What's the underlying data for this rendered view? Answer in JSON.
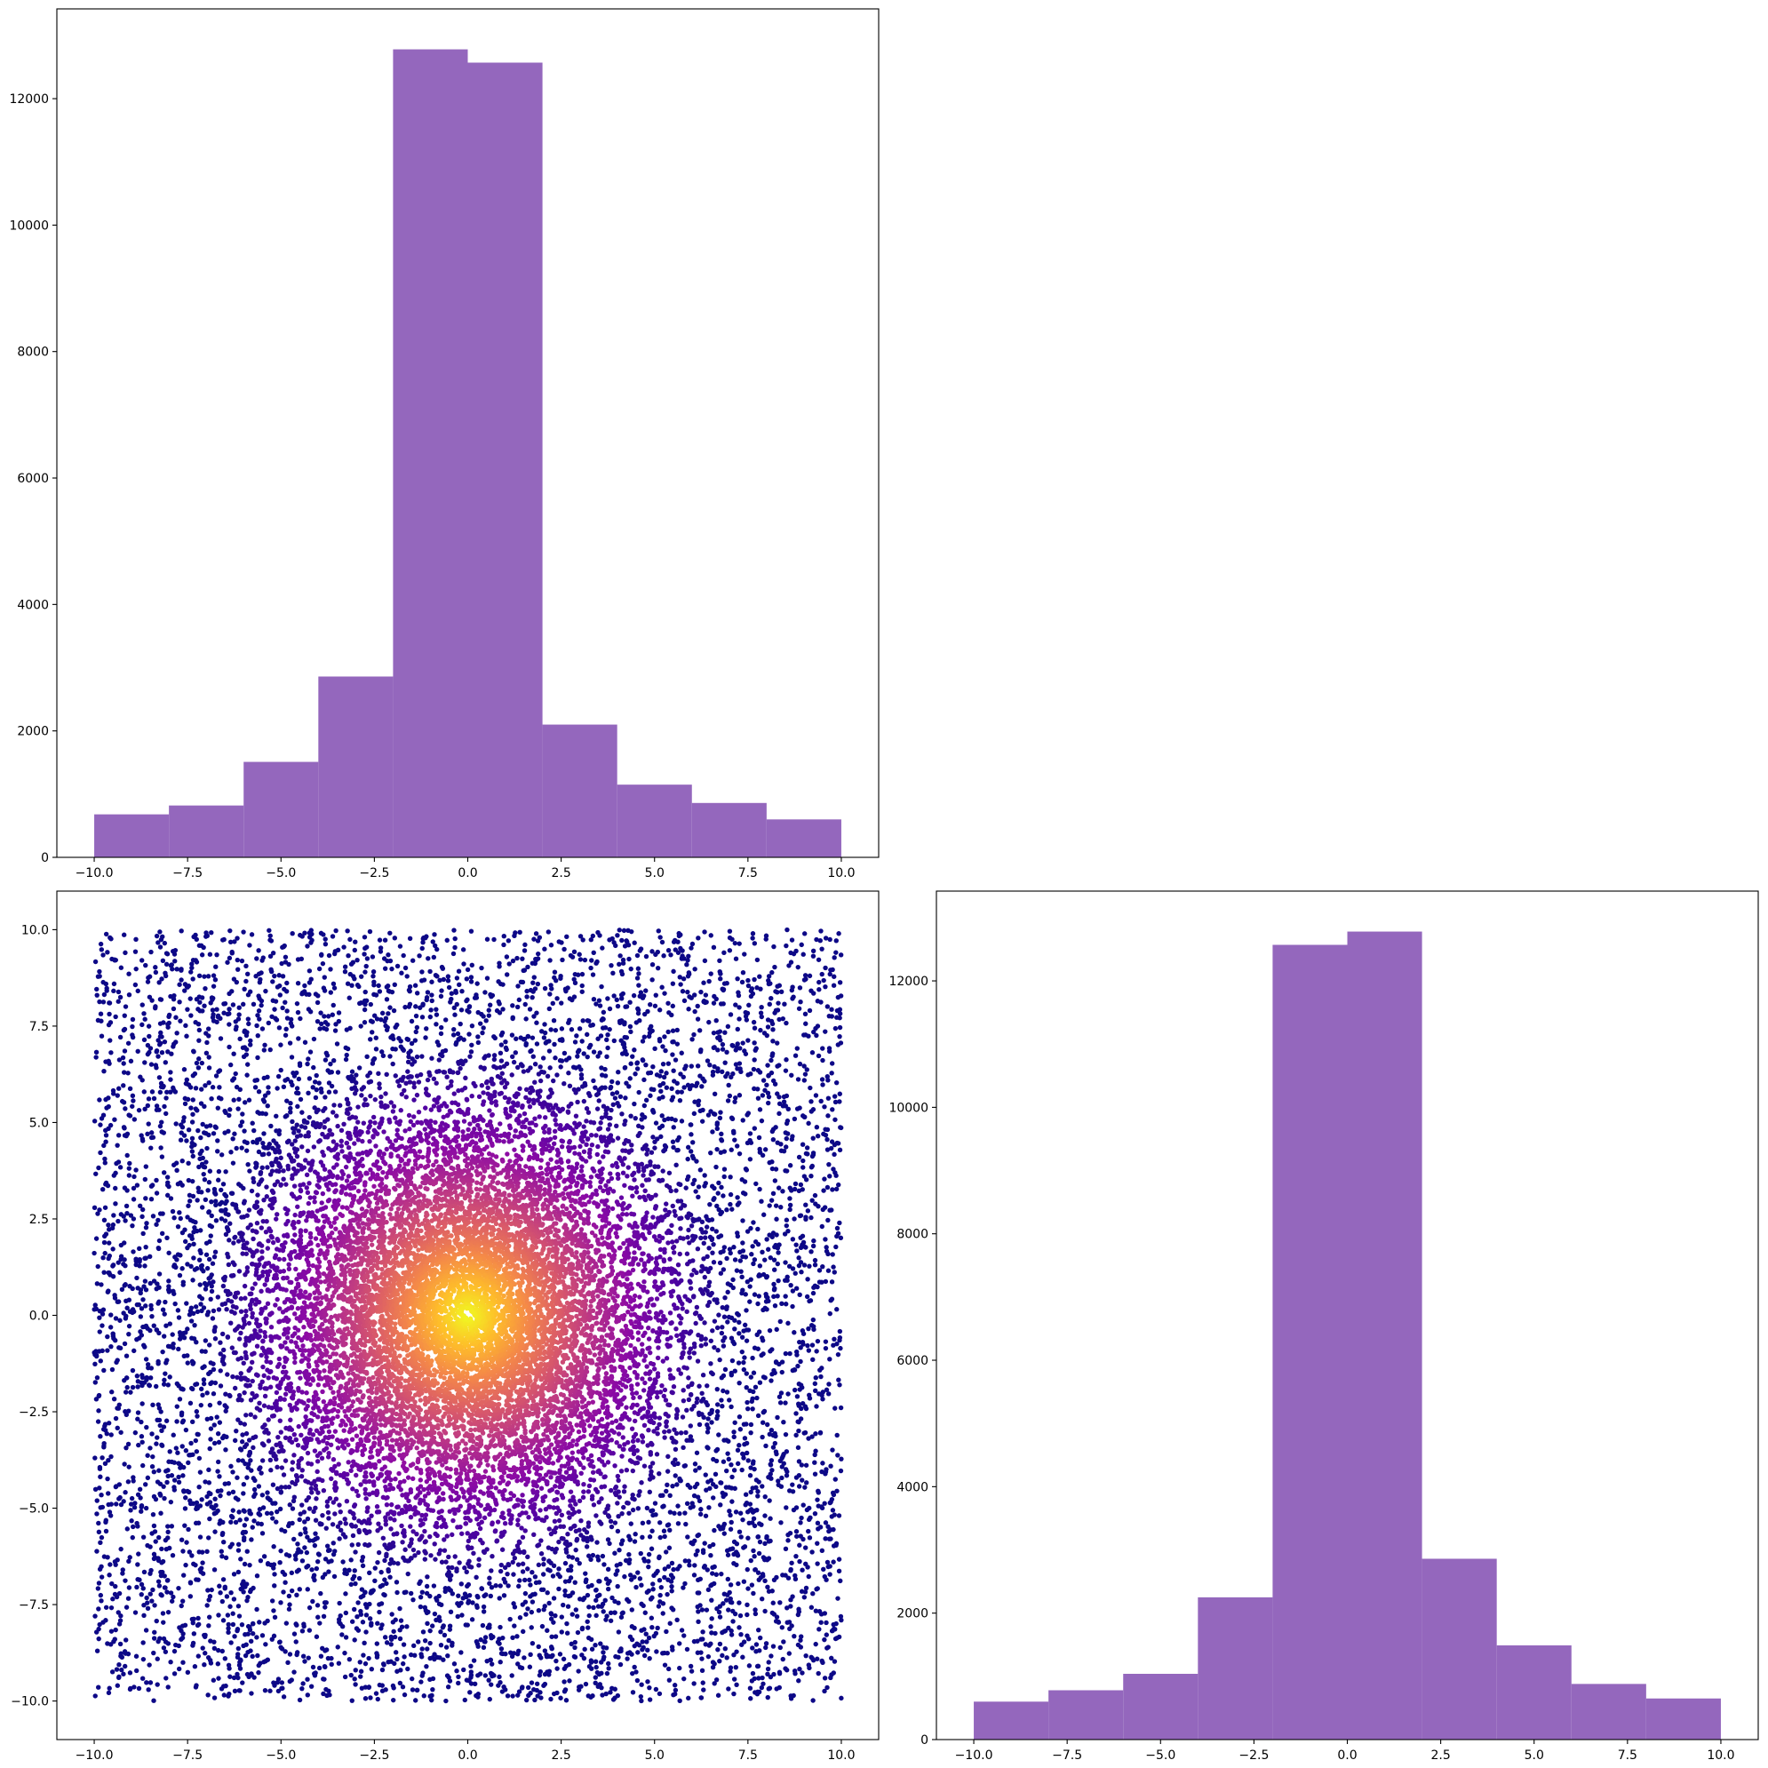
{
  "chart_data": [
    {
      "panel": "top-left",
      "type": "bar",
      "subtype": "histogram",
      "bin_edges": [
        -10,
        -8,
        -6,
        -4,
        -2,
        0,
        2,
        4,
        6,
        8,
        10
      ],
      "values": [
        680,
        820,
        1510,
        2860,
        12780,
        12570,
        2100,
        1150,
        860,
        600
      ],
      "color": "#9467bd",
      "xlim": [
        -11,
        11
      ],
      "ylim": [
        0,
        13420
      ],
      "xticks": [
        -10.0,
        -7.5,
        -5.0,
        -2.5,
        0.0,
        2.5,
        5.0,
        7.5,
        10.0
      ],
      "xtick_labels": [
        "−10.0",
        "−7.5",
        "−5.0",
        "−2.5",
        "0.0",
        "2.5",
        "5.0",
        "7.5",
        "10.0"
      ],
      "yticks": [
        0,
        2000,
        4000,
        6000,
        8000,
        10000,
        12000
      ],
      "ytick_labels": [
        "0",
        "2000",
        "4000",
        "6000",
        "8000",
        "10000",
        "12000"
      ],
      "title": "",
      "xlabel": "",
      "ylabel": "",
      "grid": false,
      "legend": "none"
    },
    {
      "panel": "bottom-left",
      "type": "scatter",
      "description_of_data": "about 30000 points; x and y each range over [-10, 10]; point colour from the plasma colormap, proportional to closeness to the origin (yellow at (0,0), dark blue in the corners)",
      "x_range": [
        -10,
        10
      ],
      "y_range": [
        -10,
        10
      ],
      "colormap": "plasma",
      "colormap_stops": [
        "#0d0887",
        "#5302a3",
        "#8b0aa5",
        "#b83289",
        "#db5c68",
        "#f48849",
        "#febd2a",
        "#f0f921"
      ],
      "xlim": [
        -11,
        11
      ],
      "ylim": [
        -11,
        11
      ],
      "xticks": [
        -10.0,
        -7.5,
        -5.0,
        -2.5,
        0.0,
        2.5,
        5.0,
        7.5,
        10.0
      ],
      "xtick_labels": [
        "−10.0",
        "−7.5",
        "−5.0",
        "−2.5",
        "0.0",
        "2.5",
        "5.0",
        "7.5",
        "10.0"
      ],
      "yticks": [
        -10.0,
        -7.5,
        -5.0,
        -2.5,
        0.0,
        2.5,
        5.0,
        7.5,
        10.0
      ],
      "ytick_labels": [
        "−10.0",
        "−7.5",
        "−5.0",
        "−2.5",
        "0.0",
        "2.5",
        "5.0",
        "7.5",
        "10.0"
      ],
      "title": "",
      "xlabel": "",
      "ylabel": "",
      "grid": false,
      "legend": "none"
    },
    {
      "panel": "bottom-right",
      "type": "bar",
      "subtype": "histogram",
      "bin_edges": [
        -10,
        -8,
        -6,
        -4,
        -2,
        0,
        2,
        4,
        6,
        8,
        10
      ],
      "values": [
        600,
        780,
        1040,
        2250,
        12570,
        12780,
        2860,
        1490,
        880,
        650
      ],
      "color": "#9467bd",
      "xlim": [
        -11,
        11
      ],
      "ylim": [
        0,
        13420
      ],
      "xticks": [
        -10.0,
        -7.5,
        -5.0,
        -2.5,
        0.0,
        2.5,
        5.0,
        7.5,
        10.0
      ],
      "xtick_labels": [
        "−10.0",
        "−7.5",
        "−5.0",
        "−2.5",
        "0.0",
        "2.5",
        "5.0",
        "7.5",
        "10.0"
      ],
      "yticks": [
        0,
        2000,
        4000,
        6000,
        8000,
        10000,
        12000
      ],
      "ytick_labels": [
        "0",
        "2000",
        "4000",
        "6000",
        "8000",
        "10000",
        "12000"
      ],
      "title": "",
      "xlabel": "",
      "ylabel": "",
      "grid": false,
      "legend": "none"
    }
  ]
}
